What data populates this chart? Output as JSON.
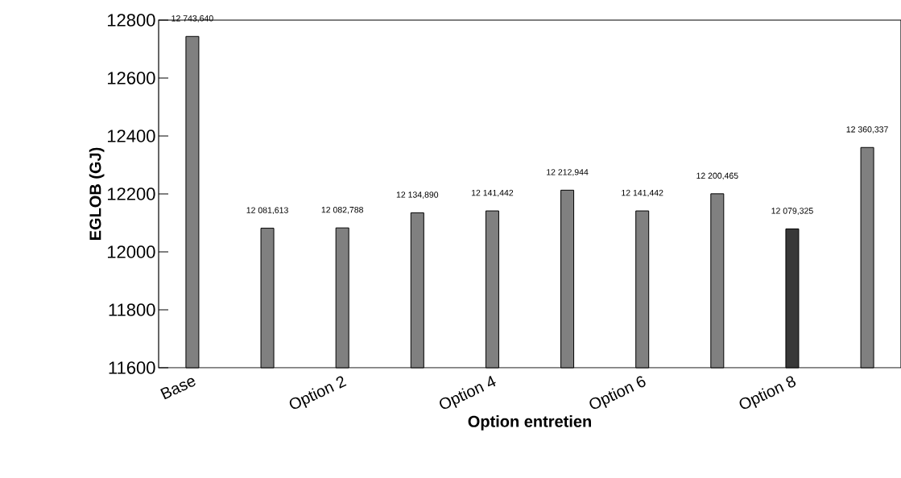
{
  "chart_data": {
    "type": "bar",
    "xlabel": "Option entretien",
    "ylabel": "EGLOB (GJ)",
    "categories": [
      "Base",
      null,
      "Option 2",
      null,
      "Option 4",
      null,
      "Option 6",
      null,
      "Option 8",
      null
    ],
    "values": [
      12743.64,
      12081.613,
      12082.788,
      12134.89,
      12141.442,
      12212.944,
      12141.442,
      12200.465,
      12079.325,
      12360.337
    ],
    "value_labels": [
      "12 743,640",
      "12 081,613",
      "12 082,788",
      "12 134,890",
      "12 141,442",
      "12 212,944",
      "12 141,442",
      "12 200,465",
      "12 079,325",
      "12 360,337"
    ],
    "colors": [
      "#808080",
      "#808080",
      "#808080",
      "#808080",
      "#808080",
      "#808080",
      "#808080",
      "#808080",
      "#383838",
      "#808080"
    ],
    "ylim": [
      11600,
      12800
    ],
    "yticks": [
      11600,
      11800,
      12000,
      12200,
      12400,
      12600,
      12800
    ],
    "grid": false
  }
}
